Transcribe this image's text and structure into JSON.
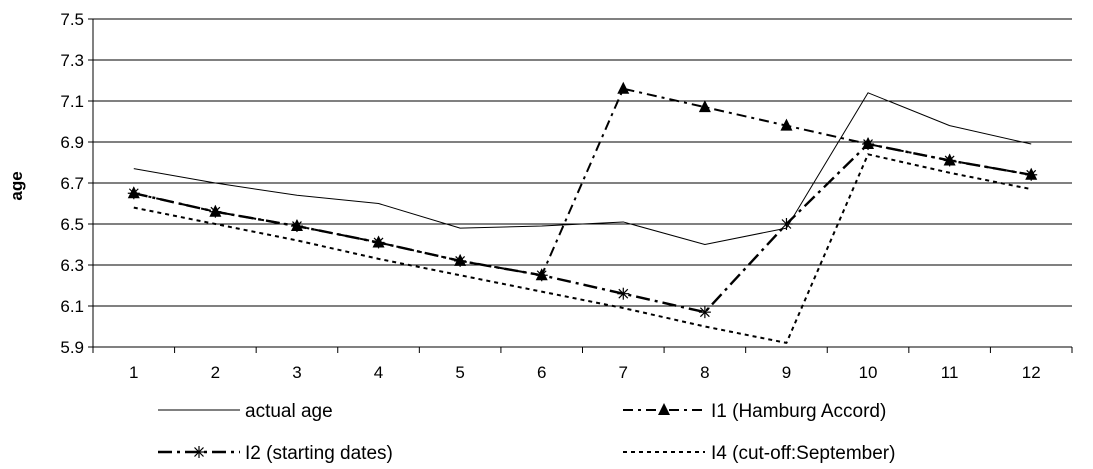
{
  "chart_data": {
    "type": "line",
    "ylabel": "age",
    "xlabel": "",
    "ylim": [
      5.9,
      7.5
    ],
    "y_ticks": [
      "7.5",
      "7.3",
      "7.1",
      "6.9",
      "6.7",
      "6.5",
      "6.3",
      "6.1",
      "5.9"
    ],
    "categories": [
      "1",
      "2",
      "3",
      "4",
      "5",
      "6",
      "7",
      "8",
      "9",
      "10",
      "11",
      "12"
    ],
    "grid": "horizontal",
    "legend_position": "bottom",
    "series": [
      {
        "name": "actual age",
        "style": "solid-thin",
        "marker": "none",
        "values": [
          6.77,
          6.7,
          6.64,
          6.6,
          6.48,
          6.49,
          6.51,
          6.4,
          6.48,
          7.14,
          6.98,
          6.89
        ]
      },
      {
        "name": "I1 (Hamburg Accord)",
        "style": "dash-dot",
        "marker": "triangle",
        "values": [
          6.65,
          6.56,
          6.49,
          6.41,
          6.32,
          6.25,
          7.16,
          7.07,
          6.98,
          6.89,
          6.81,
          6.74
        ]
      },
      {
        "name": "I2 (starting dates)",
        "style": "long-dash-dot",
        "marker": "asterisk",
        "values": [
          6.65,
          6.56,
          6.49,
          6.41,
          6.32,
          6.25,
          6.16,
          6.07,
          6.5,
          6.89,
          6.81,
          6.74
        ]
      },
      {
        "name": "I4 (cut-off:September)",
        "style": "dotted",
        "marker": "none",
        "values": [
          6.58,
          6.5,
          6.42,
          6.33,
          6.25,
          6.17,
          6.09,
          6.0,
          5.92,
          6.84,
          6.75,
          6.67
        ]
      }
    ]
  }
}
